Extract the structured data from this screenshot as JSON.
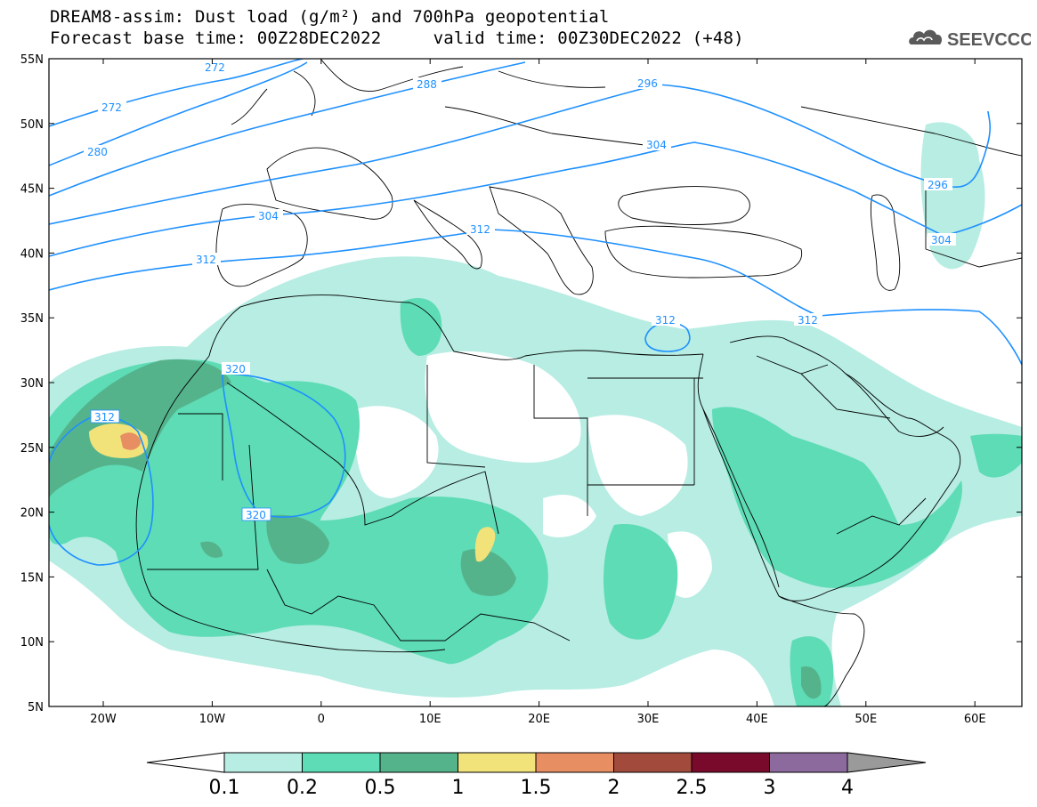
{
  "title": {
    "line1": "DREAM8-assim: Dust load (g/m²) and 700hPa geopotential",
    "line2": "Forecast base time: 00Z28DEC2022     valid time: 00Z30DEC2022 (+48)"
  },
  "logo": {
    "text": "SEEVCCC",
    "icon": "cloud-icon"
  },
  "axes": {
    "lat_labels": [
      "55N",
      "50N",
      "45N",
      "40N",
      "35N",
      "30N",
      "25N",
      "20N",
      "15N",
      "10N",
      "5N"
    ],
    "lon_labels": [
      "20W",
      "10W",
      "0",
      "10E",
      "20E",
      "30E",
      "40E",
      "50E",
      "60E"
    ]
  },
  "colorbar": {
    "labels": [
      "0.1",
      "0.2",
      "0.5",
      "1",
      "1.5",
      "2",
      "2.5",
      "3",
      "4"
    ],
    "colors": [
      "#ffffff",
      "#b7ede3",
      "#5ddcb5",
      "#55b38c",
      "#f2e27a",
      "#e78e62",
      "#a24a3c",
      "#7a0a2c",
      "#8c6a9e",
      "#9a9a9a"
    ]
  },
  "isolines": [
    {
      "label": "272"
    },
    {
      "label": "280"
    },
    {
      "label": "288"
    },
    {
      "label": "296"
    },
    {
      "label": "304"
    },
    {
      "label": "312"
    },
    {
      "label": "320"
    }
  ]
}
